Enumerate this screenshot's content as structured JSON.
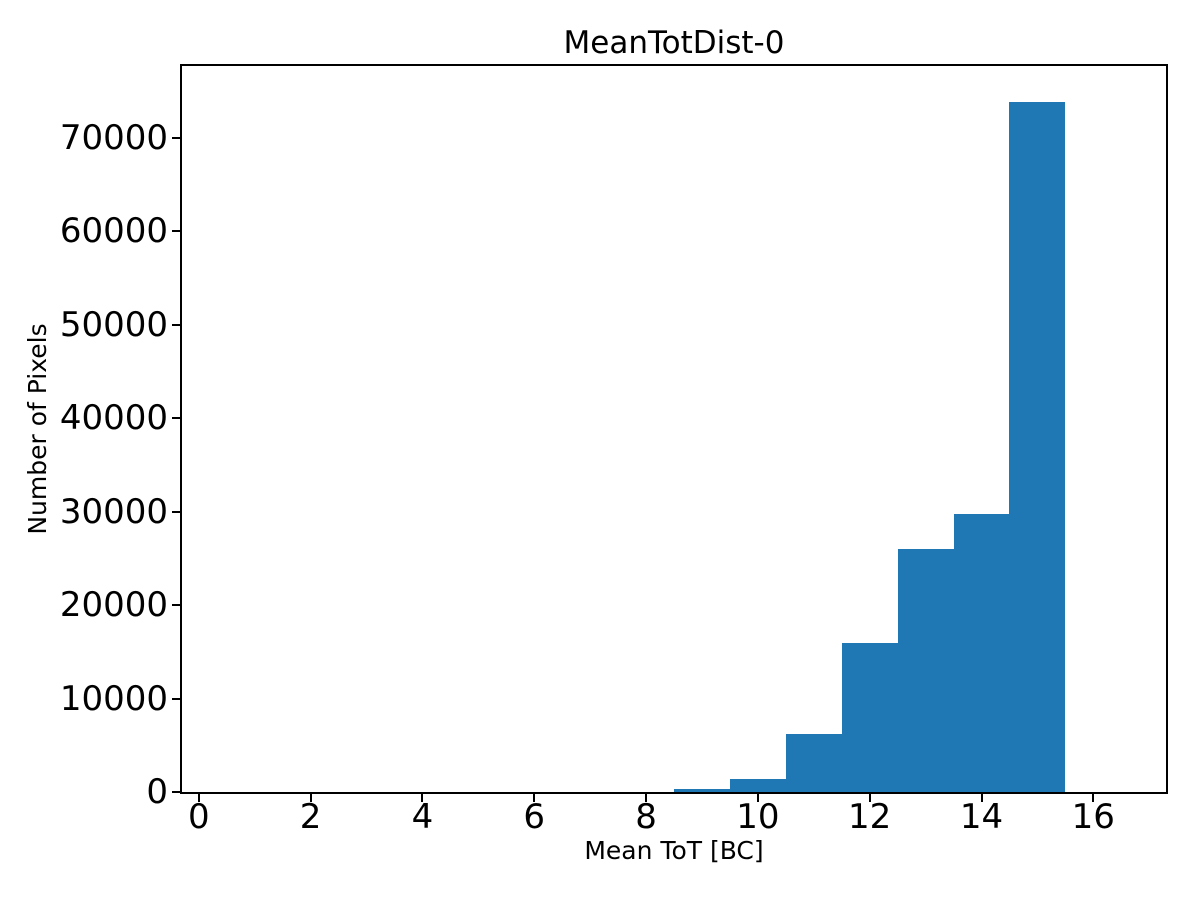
{
  "figure": {
    "background": "#ffffff",
    "text_color": "#000000",
    "axis_color": "#000000"
  },
  "chart_data": {
    "type": "bar",
    "title": "MeanTotDist-0",
    "xlabel": "Mean ToT [BC]",
    "ylabel": "Number of Pixels",
    "bar_color": "#1f77b4",
    "bin_width": 1,
    "bin_centers": [
      9,
      10,
      11,
      12,
      13,
      14,
      15
    ],
    "values": [
      300,
      1400,
      6200,
      15900,
      26000,
      29800,
      73900
    ],
    "x_ticks": [
      0,
      2,
      4,
      6,
      8,
      10,
      12,
      14,
      16
    ],
    "y_ticks": [
      0,
      10000,
      20000,
      30000,
      40000,
      50000,
      60000,
      70000
    ],
    "xlim": [
      -0.3,
      17.3
    ],
    "ylim": [
      0,
      77700
    ],
    "grid": false,
    "legend_position": "none"
  }
}
